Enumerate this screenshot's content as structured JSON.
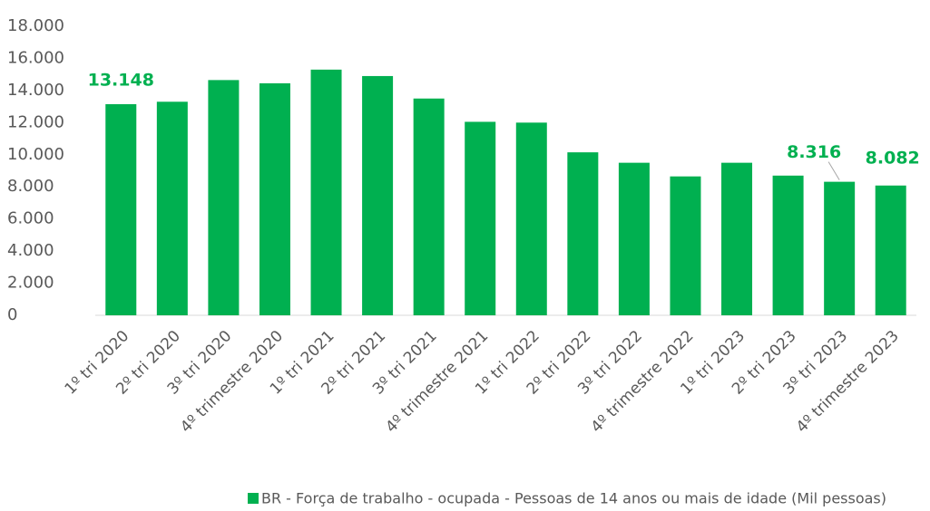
{
  "chart_data": {
    "type": "bar",
    "categories": [
      "1º tri 2020",
      "2º tri 2020",
      "3º tri 2020",
      "4º trimestre 2020",
      "1º tri 2021",
      "2º tri 2021",
      "3º tri 2021",
      "4º trimestre 2021",
      "1º tri 2022",
      "2º tri 2022",
      "3º tri 2022",
      "4º trimestre 2022",
      "1º tri 2023",
      "2º tri 2023",
      "3º tri 2023",
      "4º trimestre 2023"
    ],
    "series": [
      {
        "name": "BR - Força de trabalho - ocupada - Pessoas de 14 anos ou mais de idade (Mil pessoas)",
        "color": "#00b050",
        "values": [
          13148,
          13300,
          14650,
          14450,
          15300,
          14900,
          13500,
          12050,
          12000,
          10150,
          9500,
          8650,
          9500,
          8700,
          8316,
          8082
        ],
        "value_labels": [
          "13.148",
          null,
          null,
          null,
          null,
          null,
          null,
          null,
          null,
          null,
          null,
          null,
          null,
          null,
          "8.316",
          "8.082"
        ]
      }
    ],
    "ylim": [
      0,
      18000
    ],
    "yticks": [
      0,
      {
        "value": 2000,
        "label": "2.000"
      },
      {
        "value": 4000,
        "label": "4.000"
      },
      {
        "value": 6000,
        "label": "6.000"
      },
      {
        "value": 8000,
        "label": "8.000"
      },
      {
        "value": 10000,
        "label": "10.000"
      },
      {
        "value": 12000,
        "label": "12.000"
      },
      {
        "value": 14000,
        "label": "14.000"
      },
      {
        "value": 16000,
        "label": "16.000"
      },
      {
        "value": 18000,
        "label": "18.000"
      }
    ],
    "legend": "bottom"
  }
}
